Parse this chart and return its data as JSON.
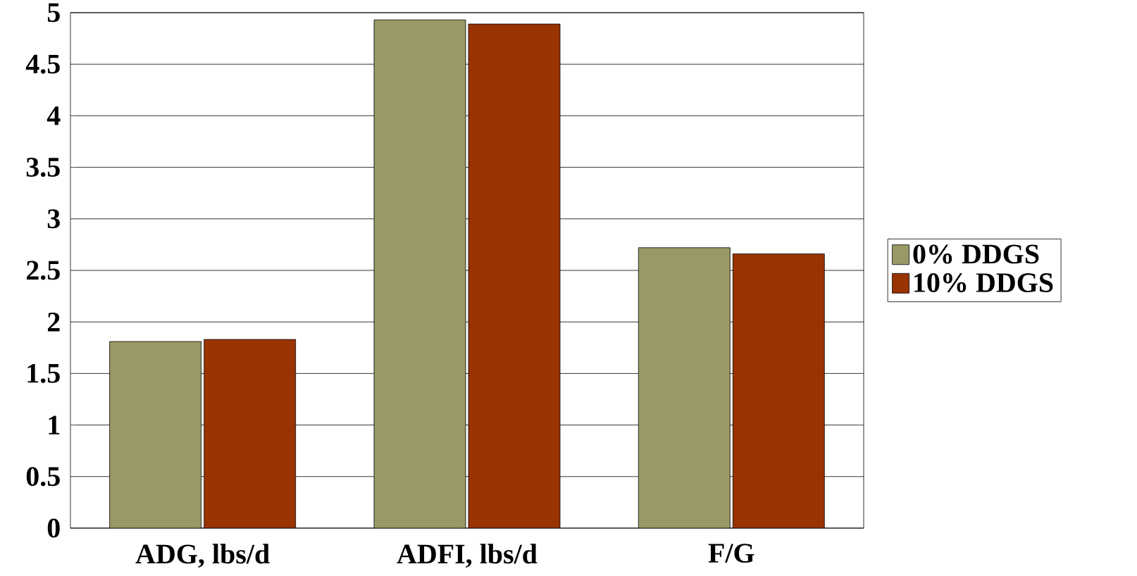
{
  "chart_data": {
    "type": "bar",
    "categories": [
      "ADG, lbs/d",
      "ADFI, lbs/d",
      "F/G"
    ],
    "series": [
      {
        "name": "0% DDGS",
        "color": "#999966",
        "values": [
          1.81,
          4.93,
          2.72
        ]
      },
      {
        "name": "10% DDGS",
        "color": "#993300",
        "values": [
          1.83,
          4.89,
          2.66
        ]
      }
    ],
    "ylim": [
      0,
      5
    ],
    "yticks": [
      0,
      0.5,
      1,
      1.5,
      2,
      2.5,
      3,
      3.5,
      4,
      4.5,
      5
    ],
    "grid": "y",
    "legend": "right"
  }
}
